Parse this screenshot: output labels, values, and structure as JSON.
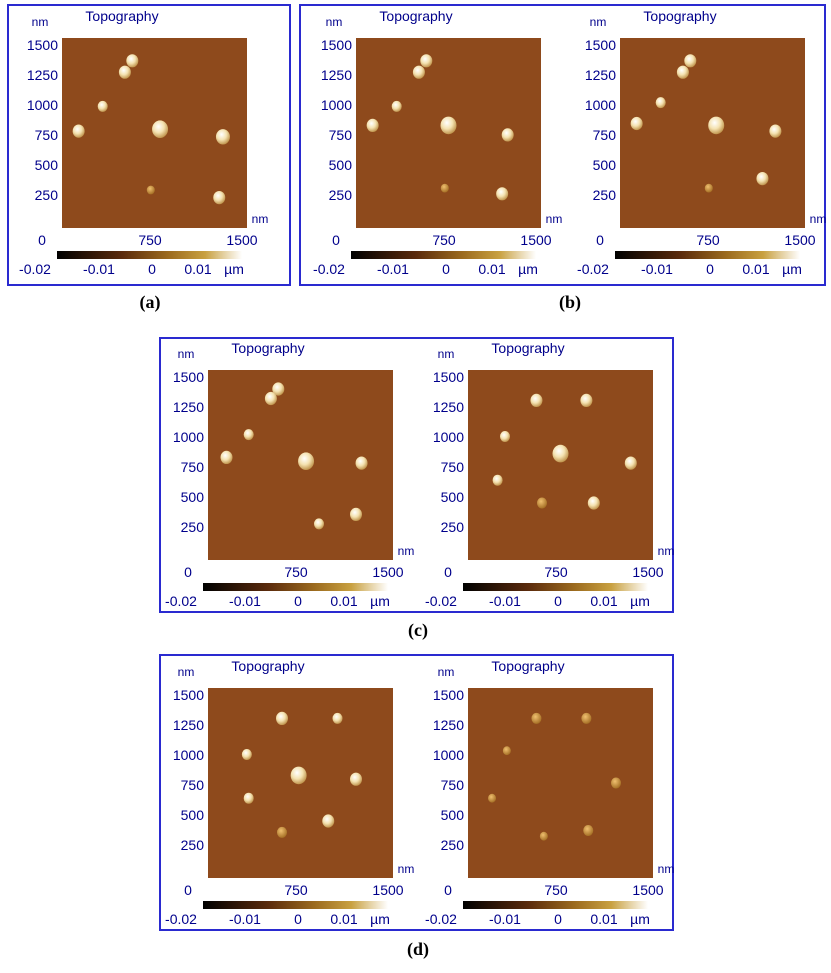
{
  "panels": [
    {
      "caption": "(a)",
      "images": [
        {
          "title": "Topography",
          "y_unit": "nm",
          "x_unit": "nm",
          "y_ticks": [
            "1500",
            "1250",
            "1000",
            "750",
            "500",
            "250"
          ],
          "origin": "0",
          "x_ticks": [
            "750",
            "1500"
          ],
          "colorbar_ticks": [
            "-0.02",
            "-0.01",
            "0",
            "0.01"
          ],
          "colorbar_unit": "µm"
        }
      ]
    },
    {
      "caption": "(b)",
      "images": [
        {
          "title": "Topography",
          "y_unit": "nm",
          "x_unit": "nm",
          "y_ticks": [
            "1500",
            "1250",
            "1000",
            "750",
            "500",
            "250"
          ],
          "origin": "0",
          "x_ticks": [
            "750",
            "1500"
          ],
          "colorbar_ticks": [
            "-0.02",
            "-0.01",
            "0",
            "0.01"
          ],
          "colorbar_unit": "µm"
        },
        {
          "title": "Topography",
          "y_unit": "nm",
          "x_unit": "nm",
          "y_ticks": [
            "1500",
            "1250",
            "1000",
            "750",
            "500",
            "250"
          ],
          "origin": "0",
          "x_ticks": [
            "750",
            "1500"
          ],
          "colorbar_ticks": [
            "-0.02",
            "-0.01",
            "0",
            "0.01"
          ],
          "colorbar_unit": "µm"
        }
      ]
    },
    {
      "caption": "(c)",
      "images": [
        {
          "title": "Topography",
          "y_unit": "nm",
          "x_unit": "nm",
          "y_ticks": [
            "1500",
            "1250",
            "1000",
            "750",
            "500",
            "250"
          ],
          "origin": "0",
          "x_ticks": [
            "750",
            "1500"
          ],
          "colorbar_ticks": [
            "-0.02",
            "-0.01",
            "0",
            "0.01"
          ],
          "colorbar_unit": "µm"
        },
        {
          "title": "Topography",
          "y_unit": "nm",
          "x_unit": "nm",
          "y_ticks": [
            "1500",
            "1250",
            "1000",
            "750",
            "500",
            "250"
          ],
          "origin": "0",
          "x_ticks": [
            "750",
            "1500"
          ],
          "colorbar_ticks": [
            "-0.02",
            "-0.01",
            "0",
            "0.01"
          ],
          "colorbar_unit": "µm"
        }
      ]
    },
    {
      "caption": "(d)",
      "images": [
        {
          "title": "Topography",
          "y_unit": "nm",
          "x_unit": "nm",
          "y_ticks": [
            "1500",
            "1250",
            "1000",
            "750",
            "500",
            "250"
          ],
          "origin": "0",
          "x_ticks": [
            "750",
            "1500"
          ],
          "colorbar_ticks": [
            "-0.02",
            "-0.01",
            "0",
            "0.01"
          ],
          "colorbar_unit": "µm"
        },
        {
          "title": "Topography",
          "y_unit": "nm",
          "x_unit": "nm",
          "y_ticks": [
            "1500",
            "1250",
            "1000",
            "750",
            "500",
            "250"
          ],
          "origin": "0",
          "x_ticks": [
            "750",
            "1500"
          ],
          "colorbar_ticks": [
            "-0.02",
            "-0.01",
            "0",
            "0.01"
          ],
          "colorbar_unit": "µm"
        }
      ]
    }
  ]
}
